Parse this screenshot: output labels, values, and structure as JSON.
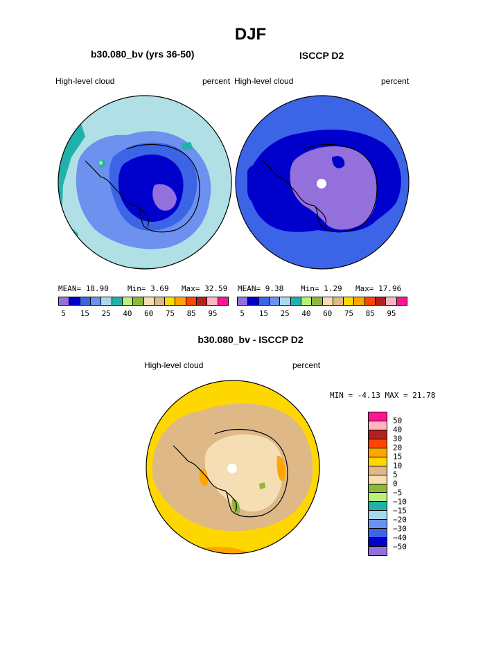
{
  "title": "DJF",
  "panel_left": {
    "title": "b30.080_bv (yrs 36-50)",
    "variable": "High-level cloud",
    "units": "percent",
    "stats": {
      "mean": "MEAN=   18.90",
      "min": "Min=    3.69",
      "max": "Max=  32.59"
    }
  },
  "panel_right": {
    "title": "ISCCP D2",
    "variable": "High-level cloud",
    "units": "percent",
    "stats": {
      "mean": "MEAN=    9.38",
      "min": "Min=    1.29",
      "max": "Max=  17.96"
    }
  },
  "panel_diff": {
    "title": "b30.080_bv - ISCCP D2",
    "variable": "High-level cloud",
    "units": "percent",
    "minmax": "MIN =  -4.13 MAX =  21.78"
  },
  "colorbar_top": {
    "colors": [
      "#9370db",
      "#0000cd",
      "#3c64e6",
      "#6d91ee",
      "#a8d8ea",
      "#20b2aa",
      "#b8f07a",
      "#8fb83a",
      "#f5deb3",
      "#deb887",
      "#ffd700",
      "#ffa500",
      "#ff4500",
      "#b22222",
      "#ffb6c1",
      "#ff1493"
    ],
    "labels": [
      "5",
      "15",
      "25",
      "40",
      "60",
      "75",
      "85",
      "95"
    ]
  },
  "colorbar_diff": {
    "colors": [
      "#ff1493",
      "#ffb6c1",
      "#b22222",
      "#ff4500",
      "#ffa500",
      "#ffd700",
      "#deb887",
      "#f5deb3",
      "#8fb83a",
      "#b8f07a",
      "#20b2aa",
      "#a8d8ea",
      "#6d91ee",
      "#3c64e6",
      "#0000cd",
      "#9370db"
    ],
    "labels": [
      "50",
      "40",
      "30",
      "20",
      "15",
      "10",
      "5",
      "0",
      "−5",
      "−10",
      "−15",
      "−20",
      "−30",
      "−40",
      "−50"
    ]
  },
  "map_colors": {
    "deep_purple": "#9370db",
    "navy": "#0000cd",
    "royal": "#3c64e6",
    "cornflower": "#6d91ee",
    "light_blue": "#b0e0e6",
    "teal": "#20b2aa",
    "lime": "#b8f07a",
    "olive": "#8fb83a",
    "wheat": "#f5deb3",
    "tan": "#deb887",
    "gold": "#ffd700",
    "orange": "#ffa500"
  }
}
